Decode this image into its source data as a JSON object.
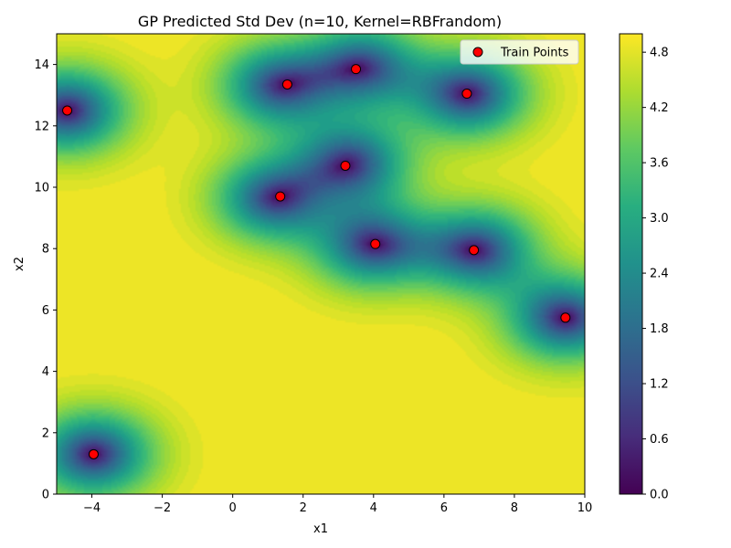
{
  "chart_data": {
    "type": "heatmap",
    "title": "GP Predicted Std Dev (n=10, Kernel=RBFrandom)",
    "xlabel": "x1",
    "ylabel": "x2",
    "xlim": [
      -5,
      10
    ],
    "ylim": [
      0,
      15
    ],
    "x_ticks": [
      -4,
      -2,
      0,
      2,
      4,
      6,
      8,
      10
    ],
    "y_ticks": [
      0,
      2,
      4,
      6,
      8,
      10,
      12,
      14
    ],
    "colorbar": {
      "min": 0.0,
      "max": 5.0,
      "ticks": [
        "0.0",
        "0.6",
        "1.2",
        "1.8",
        "2.4",
        "3.0",
        "3.6",
        "4.2",
        "4.8"
      ],
      "colormap": "viridis"
    },
    "legend": {
      "position": "top-right",
      "entries": [
        "Train Points"
      ]
    },
    "series": [
      {
        "name": "Train Points",
        "type": "scatter",
        "marker_color": "#ff0000",
        "x": [
          -4.7,
          -3.95,
          1.35,
          1.55,
          3.2,
          3.5,
          4.05,
          6.65,
          6.85,
          9.45
        ],
        "y": [
          12.5,
          1.3,
          9.7,
          13.35,
          10.7,
          13.85,
          8.15,
          13.05,
          7.95,
          5.75
        ]
      }
    ]
  }
}
